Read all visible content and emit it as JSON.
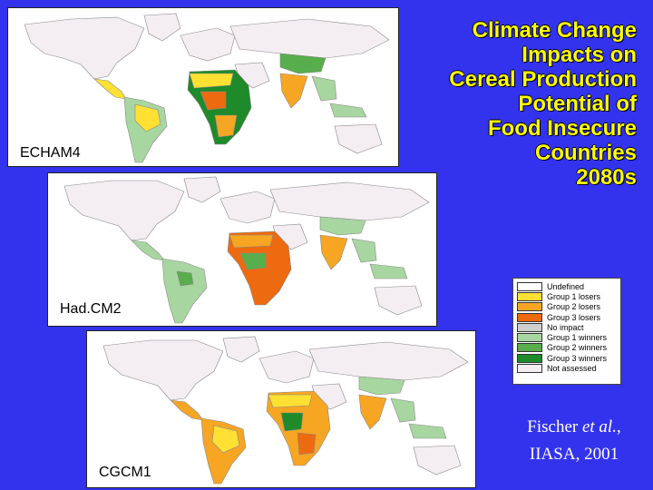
{
  "title_lines": [
    "Climate Change",
    "Impacts on",
    "Cereal Production",
    "Potential of",
    "Food Insecure",
    "Countries",
    "2080s"
  ],
  "maps": [
    {
      "label": "ECHAM4"
    },
    {
      "label": "Had.CM2"
    },
    {
      "label": "CGCM1"
    }
  ],
  "legend": [
    {
      "label": "Undefined",
      "color": "#ffffff"
    },
    {
      "label": "Group 1 losers",
      "color": "#ffe033"
    },
    {
      "label": "Group 2 losers",
      "color": "#f6a623"
    },
    {
      "label": "Group 3 losers",
      "color": "#ee6a10"
    },
    {
      "label": "No impact",
      "color": "#cfcfcf"
    },
    {
      "label": "Group 1 winners",
      "color": "#a8d6a0"
    },
    {
      "label": "Group 2 winners",
      "color": "#58ad4c"
    },
    {
      "label": "Group 3 winners",
      "color": "#1f8a2a"
    },
    {
      "label": "Not assessed",
      "color": "#f4eef2"
    }
  ],
  "citation": {
    "line1_prefix": "Fischer ",
    "line1_italic": "et al.",
    "line1_suffix": ",",
    "line2": "IIASA, 2001"
  },
  "colors": {
    "background": "#3333ee",
    "title": "#ffff00",
    "land_default": "#f4eef2",
    "border": "#888888"
  }
}
